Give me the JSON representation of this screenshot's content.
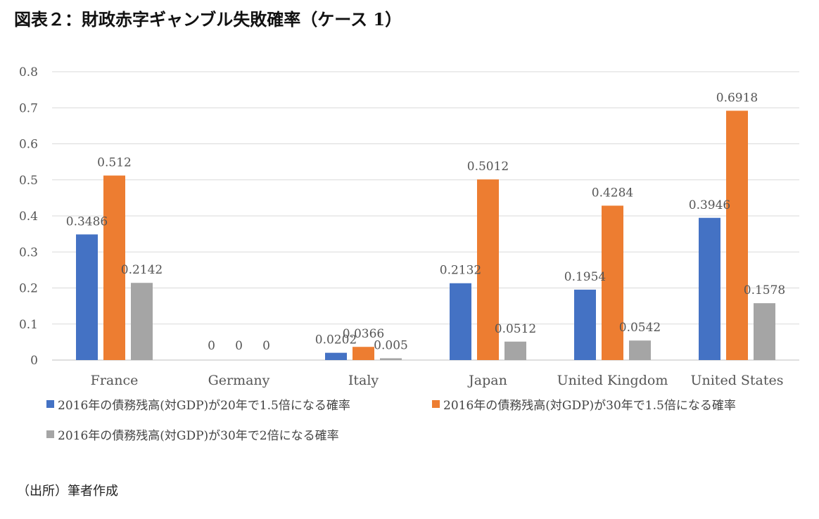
{
  "title": "図表２：財政赤字ギャンブル失敗確率（ケース 1）",
  "source": "（出所）筆者作成",
  "colors": {
    "series1": "#4472C4",
    "series2": "#ED7D31",
    "series3": "#A5A5A5",
    "grid": "#D9D9D9",
    "text": "#595959"
  },
  "chart_data": {
    "type": "bar",
    "title": "図表２：財政赤字ギャンブル失敗確率（ケース 1）",
    "xlabel": "",
    "ylabel": "",
    "ylim": [
      0,
      0.8
    ],
    "yticks": [
      "0",
      "0.1",
      "0.2",
      "0.3",
      "0.4",
      "0.5",
      "0.6",
      "0.7",
      "0.8"
    ],
    "grid": true,
    "legend_position": "bottom",
    "categories": [
      "France",
      "Germany",
      "Italy",
      "Japan",
      "United Kingdom",
      "United States"
    ],
    "series": [
      {
        "name": "2016年の債務残高(対GDP)が20年で1.5倍になる確率",
        "color": "#4472C4",
        "values": [
          0.3486,
          0,
          0.0202,
          0.2132,
          0.1954,
          0.3946
        ],
        "labels": [
          "0.3486",
          "0",
          "0.0202",
          "0.2132",
          "0.1954",
          "0.3946"
        ]
      },
      {
        "name": "2016年の債務残高(対GDP)が30年で1.5倍になる確率",
        "color": "#ED7D31",
        "values": [
          0.512,
          0,
          0.0366,
          0.5012,
          0.4284,
          0.6918
        ],
        "labels": [
          "0.512",
          "0",
          "0.0366",
          "0.5012",
          "0.4284",
          "0.6918"
        ]
      },
      {
        "name": "2016年の債務残高(対GDP)が30年で2倍になる確率",
        "color": "#A5A5A5",
        "values": [
          0.2142,
          0,
          0.005,
          0.0512,
          0.0542,
          0.1578
        ],
        "labels": [
          "0.2142",
          "0",
          "0.005",
          "0.0512",
          "0.0542",
          "0.1578"
        ]
      }
    ]
  }
}
